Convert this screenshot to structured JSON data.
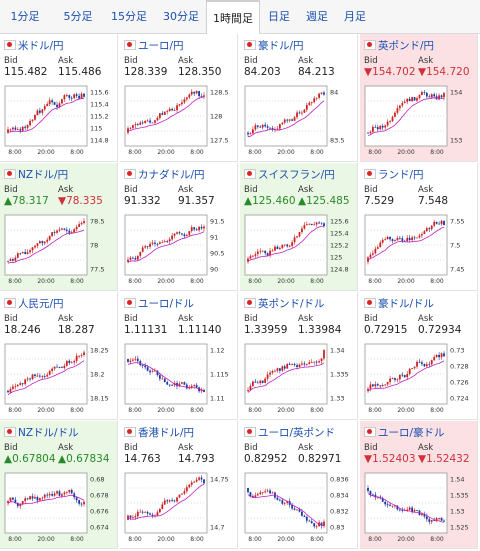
{
  "tabs": [
    {
      "label": "1分足"
    },
    {
      "label": "5分足"
    },
    {
      "label": "15分足"
    },
    {
      "label": "30分足"
    },
    {
      "label": "1時間足",
      "active": true
    },
    {
      "label": "日足"
    },
    {
      "label": "週足"
    },
    {
      "label": "月足"
    }
  ],
  "labels": {
    "bid": "Bid",
    "ask": "Ask"
  },
  "colors": {
    "up_bg": "#e9f7e4",
    "down_bg": "#fbe1e4",
    "up_text": "#2a8a2a",
    "down_text": "#d0303a",
    "link": "#1a4fb0",
    "ma_line": "#c020c0",
    "candle_up": "#cc2222",
    "candle_down": "#1a3aa0"
  },
  "chart_x_labels": [
    "8:00",
    "20:00",
    "8:00"
  ],
  "pairs": [
    {
      "name": "米ドル/円",
      "bid": "115.482",
      "ask": "115.486",
      "state": "none",
      "dir": "up",
      "y": [
        "115.6",
        "115.4",
        "115.2",
        "115",
        "114.8"
      ]
    },
    {
      "name": "ユーロ/円",
      "bid": "128.339",
      "ask": "128.350",
      "state": "none",
      "dir": "up",
      "y": [
        "128.5",
        "128",
        "127.5"
      ]
    },
    {
      "name": "豪ドル/円",
      "bid": "84.203",
      "ask": "84.213",
      "state": "none",
      "dir": "up",
      "y": [
        "84",
        "83.5"
      ]
    },
    {
      "name": "英ポンド/円",
      "bid": "▼154.702",
      "ask": "▼154.720",
      "state": "down",
      "dir": "up",
      "y": [
        "154",
        "153"
      ]
    },
    {
      "name": "NZドル/円",
      "bid": "▲78.317",
      "ask": "▼78.335",
      "state": "up",
      "askState": "down",
      "dir": "up",
      "y": [
        "78.5",
        "78",
        "77.5"
      ]
    },
    {
      "name": "カナダドル/円",
      "bid": "91.332",
      "ask": "91.357",
      "state": "none",
      "dir": "up",
      "y": [
        "91.5",
        "91",
        "90.5",
        "90"
      ]
    },
    {
      "name": "スイスフラン/円",
      "bid": "▲125.460",
      "ask": "▲125.485",
      "state": "up",
      "dir": "up",
      "y": [
        "125.6",
        "125.4",
        "125.2",
        "125",
        "124.8"
      ]
    },
    {
      "name": "ランド/円",
      "bid": "7.529",
      "ask": "7.548",
      "state": "none",
      "dir": "up",
      "y": [
        "7.55",
        "7.5",
        "7.45"
      ]
    },
    {
      "name": "人民元/円",
      "bid": "18.246",
      "ask": "18.287",
      "state": "none",
      "dir": "up",
      "y": [
        "18.25",
        "18.2",
        "18.15"
      ]
    },
    {
      "name": "ユーロ/ドル",
      "bid": "1.11131",
      "ask": "1.11140",
      "state": "none",
      "dir": "down",
      "y": [
        "1.12",
        "1.115",
        "1.11"
      ]
    },
    {
      "name": "英ポンド/ドル",
      "bid": "1.33959",
      "ask": "1.33984",
      "state": "none",
      "dir": "up",
      "y": [
        "1.34",
        "1.335",
        "1.33"
      ]
    },
    {
      "name": "豪ドル/ドル",
      "bid": "0.72915",
      "ask": "0.72934",
      "state": "none",
      "dir": "up",
      "y": [
        "0.73",
        "0.728",
        "0.726",
        "0.724"
      ]
    },
    {
      "name": "NZドル/ドル",
      "bid": "▲0.67804",
      "ask": "▲0.67834",
      "state": "up",
      "dir": "flat",
      "y": [
        "0.68",
        "0.678",
        "0.676",
        "0.674"
      ]
    },
    {
      "name": "香港ドル/円",
      "bid": "14.763",
      "ask": "14.793",
      "state": "none",
      "dir": "up",
      "y": [
        "14.75",
        "14.7"
      ]
    },
    {
      "name": "ユーロ/英ポンド",
      "bid": "0.82952",
      "ask": "0.82971",
      "state": "none",
      "dir": "down",
      "y": [
        "0.836",
        "0.834",
        "0.832",
        "0.83"
      ]
    },
    {
      "name": "ユーロ/豪ドル",
      "bid": "▼1.52403",
      "ask": "▼1.52432",
      "state": "down",
      "dir": "down",
      "y": [
        "1.54",
        "1.535",
        "1.53",
        "1.525"
      ]
    }
  ]
}
